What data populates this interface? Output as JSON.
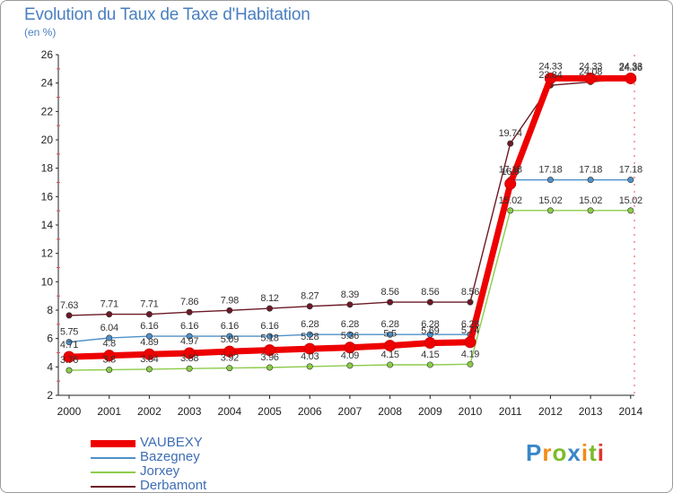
{
  "chart_data": {
    "type": "line",
    "title": "Evolution du Taux de Taxe d'Habitation",
    "unit_label": "(en %)",
    "x": [
      "2000",
      "2001",
      "2002",
      "2003",
      "2004",
      "2005",
      "2006",
      "2007",
      "2008",
      "2009",
      "2010",
      "2011",
      "2012",
      "2013",
      "2014"
    ],
    "ylim": [
      2,
      26
    ],
    "yticks": [
      2,
      4,
      6,
      8,
      10,
      12,
      14,
      16,
      18,
      20,
      22,
      24,
      26
    ],
    "grid": false,
    "legend_position": "bottom-left",
    "series": [
      {
        "name": "Derbamont",
        "color": "#6b1a26",
        "values": [
          7.63,
          7.71,
          7.71,
          7.86,
          7.98,
          8.12,
          8.27,
          8.39,
          8.56,
          8.56,
          8.56,
          19.74,
          23.84,
          24.08,
          24.36
        ],
        "labels": [
          "7.63",
          "7.71",
          "7.71",
          "7.86",
          "7.98",
          "8.12",
          "8.27",
          "8.39",
          "8.56",
          "8.56",
          "8.56",
          "19.74",
          "23.84",
          "24.08",
          "24.36"
        ]
      },
      {
        "name": "Bazegney",
        "color": "#4f90c8",
        "values": [
          5.75,
          6.04,
          6.16,
          6.16,
          6.16,
          6.16,
          6.28,
          6.28,
          6.28,
          6.28,
          6.28,
          17.18,
          17.18,
          17.18,
          17.18
        ],
        "labels": [
          "5.75",
          "6.04",
          "6.16",
          "6.16",
          "6.16",
          "6.16",
          "6.28",
          "6.28",
          "6.28",
          "6.28",
          "6.28",
          "17.18",
          "17.18",
          "17.18",
          "17.18"
        ]
      },
      {
        "name": "Jorxey",
        "color": "#8ccc4a",
        "values": [
          3.76,
          3.8,
          3.84,
          3.88,
          3.92,
          3.96,
          4.03,
          4.09,
          4.15,
          4.15,
          4.19,
          15.02,
          15.02,
          15.02,
          15.02
        ],
        "labels": [
          "3.76",
          "3.8",
          "3.84",
          "3.88",
          "3.92",
          "3.96",
          "4.03",
          "4.09",
          "4.15",
          "4.15",
          "4.19",
          "15.02",
          "15.02",
          "15.02",
          "15.02"
        ]
      },
      {
        "name": "VAUBEXY",
        "color": "#ee0000",
        "values": [
          4.71,
          4.8,
          4.89,
          4.97,
          5.09,
          5.18,
          5.28,
          5.36,
          5.5,
          5.69,
          5.74,
          16.9,
          24.33,
          24.33,
          24.33
        ],
        "labels": [
          "4.71",
          "4.8",
          "4.89",
          "4.97",
          "5.09",
          "5.18",
          "5.28",
          "5.36",
          "5.5",
          "5.69",
          "5.74",
          "16.9",
          "24.33",
          "24.33",
          "24.33"
        ]
      }
    ],
    "legend_order": [
      "VAUBEXY",
      "Bazegney",
      "Jorxey",
      "Derbamont"
    ]
  },
  "logo": {
    "text": "Proxiti",
    "colors": [
      "#3a86c8",
      "#f08c1a",
      "#7cbb2c",
      "#e0342c"
    ]
  }
}
